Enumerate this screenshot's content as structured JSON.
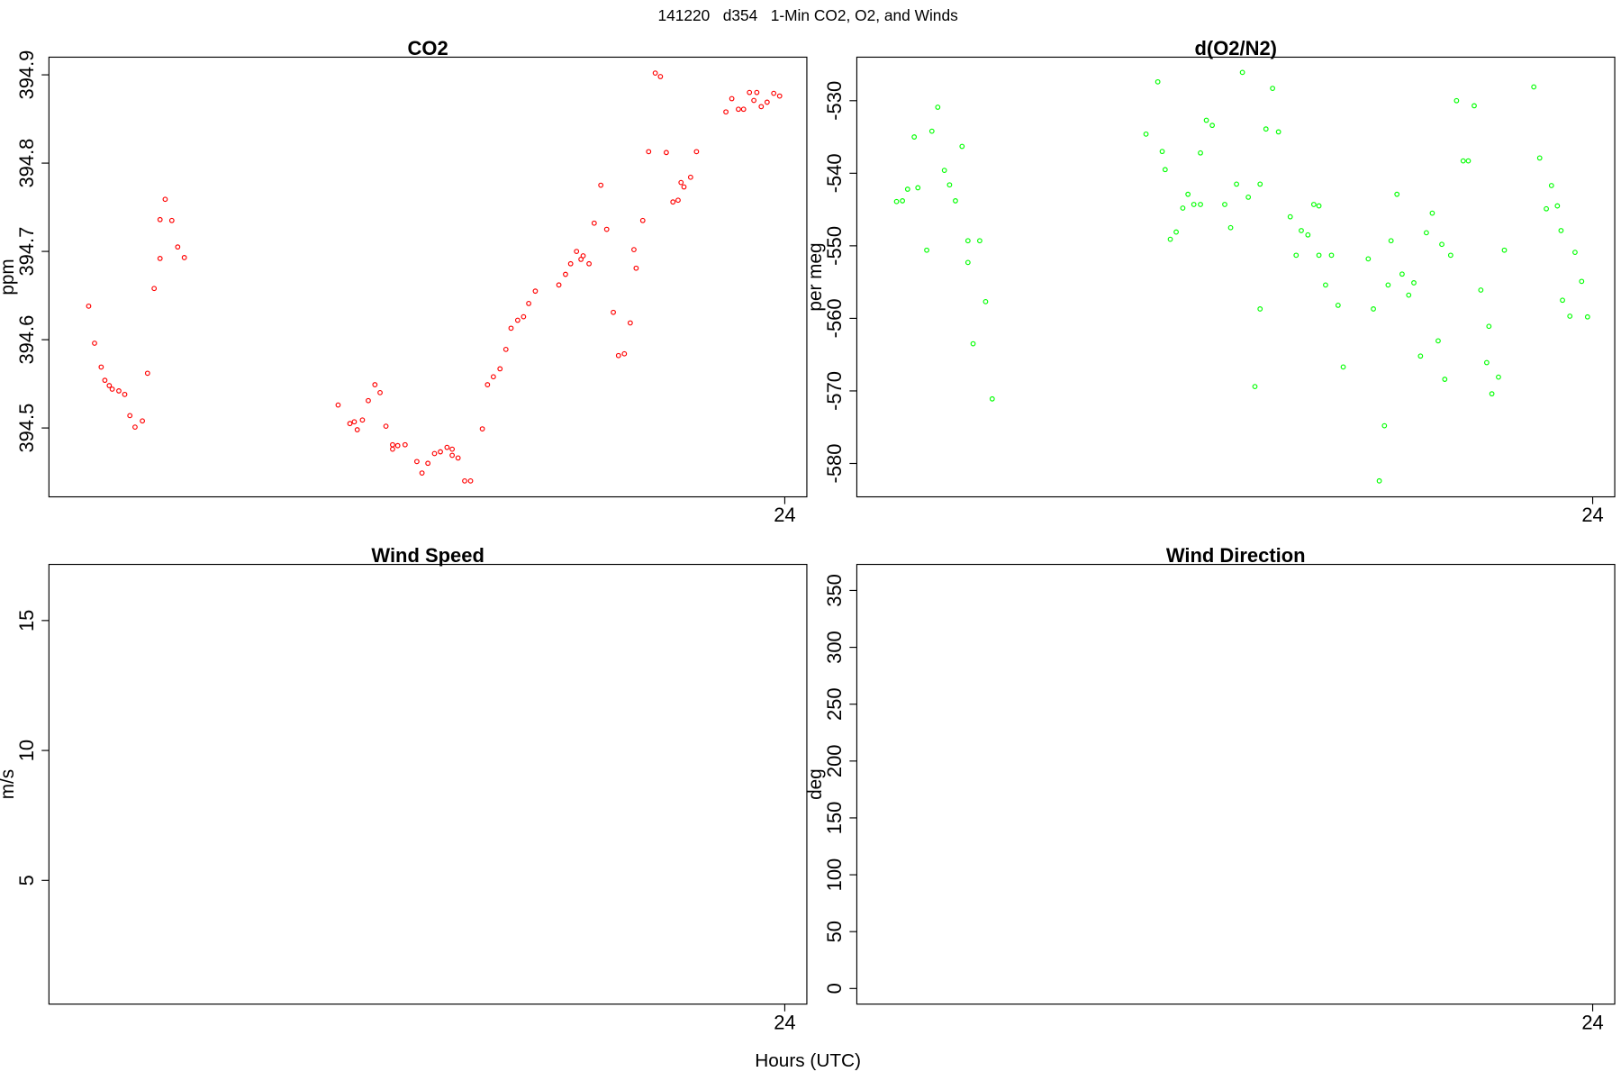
{
  "title": "141220   d354   1-Min CO2, O2, and Winds",
  "xlabel": "Hours (UTC)",
  "chart_data": [
    {
      "type": "scatter",
      "title": "CO2",
      "ylabel": "ppm",
      "color": "#ff0000",
      "xlim": [
        23,
        24.03
      ],
      "xticks": [
        24
      ],
      "ylim": [
        394.422,
        394.92
      ],
      "yticks": [
        394.5,
        394.6,
        394.7,
        394.8,
        394.9
      ],
      "x": [
        23.054,
        23.062,
        23.071,
        23.076,
        23.082,
        23.086,
        23.095,
        23.103,
        23.11,
        23.117,
        23.127,
        23.134,
        23.143,
        23.151,
        23.151,
        23.158,
        23.167,
        23.175,
        23.184,
        23.393,
        23.409,
        23.415,
        23.419,
        23.426,
        23.434,
        23.443,
        23.45,
        23.458,
        23.467,
        23.467,
        23.474,
        23.484,
        23.5,
        23.507,
        23.515,
        23.524,
        23.532,
        23.541,
        23.548,
        23.548,
        23.556,
        23.565,
        23.573,
        23.589,
        23.596,
        23.604,
        23.613,
        23.621,
        23.628,
        23.637,
        23.645,
        23.652,
        23.661,
        23.693,
        23.702,
        23.709,
        23.717,
        23.723,
        23.726,
        23.734,
        23.741,
        23.75,
        23.758,
        23.767,
        23.774,
        23.782,
        23.79,
        23.795,
        23.798,
        23.807,
        23.815,
        23.824,
        23.831,
        23.839,
        23.848,
        23.855,
        23.859,
        23.863,
        23.872,
        23.88,
        23.92,
        23.928,
        23.937,
        23.944,
        23.952,
        23.958,
        23.962,
        23.968,
        23.976,
        23.985,
        23.993
      ],
      "values": [
        394.638,
        394.596,
        394.569,
        394.554,
        394.548,
        394.544,
        394.542,
        394.538,
        394.514,
        394.501,
        394.508,
        394.562,
        394.658,
        394.736,
        394.692,
        394.759,
        394.735,
        394.705,
        394.693,
        394.526,
        394.505,
        394.507,
        394.498,
        394.509,
        394.531,
        394.549,
        394.54,
        394.502,
        394.481,
        394.476,
        394.48,
        394.481,
        394.462,
        394.449,
        394.46,
        394.471,
        394.473,
        394.478,
        394.476,
        394.469,
        394.466,
        394.44,
        394.44,
        394.499,
        394.549,
        394.558,
        394.567,
        394.589,
        394.613,
        394.622,
        394.626,
        394.641,
        394.655,
        394.662,
        394.674,
        394.686,
        394.7,
        394.691,
        394.695,
        394.686,
        394.732,
        394.775,
        394.725,
        394.631,
        394.582,
        394.584,
        394.619,
        394.702,
        394.681,
        394.735,
        394.813,
        394.902,
        394.898,
        394.812,
        394.756,
        394.758,
        394.778,
        394.773,
        394.784,
        394.813,
        394.858,
        394.873,
        394.861,
        394.861,
        394.88,
        394.871,
        394.88,
        394.864,
        394.869,
        394.879,
        394.876
      ]
    },
    {
      "type": "scatter",
      "title": "d(O2/N2)",
      "ylabel": "per meg",
      "color": "#00ff00",
      "xlim": [
        23,
        24.03
      ],
      "xticks": [
        24
      ],
      "ylim": [
        -584.6,
        -524.0
      ],
      "yticks": [
        -580,
        -570,
        -560,
        -550,
        -540,
        -530
      ],
      "x": [
        23.054,
        23.062,
        23.069,
        23.078,
        23.083,
        23.095,
        23.102,
        23.11,
        23.119,
        23.126,
        23.134,
        23.143,
        23.151,
        23.151,
        23.158,
        23.167,
        23.175,
        23.184,
        23.393,
        23.409,
        23.415,
        23.419,
        23.426,
        23.434,
        23.443,
        23.45,
        23.458,
        23.467,
        23.467,
        23.475,
        23.483,
        23.5,
        23.508,
        23.516,
        23.524,
        23.532,
        23.541,
        23.548,
        23.548,
        23.556,
        23.565,
        23.573,
        23.589,
        23.597,
        23.604,
        23.613,
        23.621,
        23.628,
        23.628,
        23.637,
        23.645,
        23.654,
        23.661,
        23.695,
        23.702,
        23.71,
        23.717,
        23.722,
        23.726,
        23.734,
        23.741,
        23.75,
        23.757,
        23.766,
        23.774,
        23.782,
        23.79,
        23.795,
        23.799,
        23.807,
        23.815,
        23.824,
        23.831,
        23.839,
        23.848,
        23.856,
        23.859,
        23.863,
        23.872,
        23.88,
        23.92,
        23.928,
        23.937,
        23.944,
        23.952,
        23.957,
        23.959,
        23.969,
        23.976,
        23.985,
        23.993
      ],
      "values": [
        -543.9,
        -543.8,
        -542.2,
        -535.0,
        -542.0,
        -550.6,
        -534.2,
        -530.9,
        -539.6,
        -541.6,
        -543.8,
        -536.3,
        -552.3,
        -549.3,
        -563.5,
        -549.3,
        -557.7,
        -571.1,
        -534.6,
        -527.4,
        -537.0,
        -539.5,
        -549.1,
        -548.1,
        -544.8,
        -542.9,
        -544.3,
        -537.2,
        -544.3,
        -532.7,
        -533.4,
        -544.3,
        -547.5,
        -541.5,
        -526.1,
        -543.3,
        -569.4,
        -541.5,
        -558.7,
        -533.9,
        -528.3,
        -534.3,
        -546.0,
        -551.3,
        -547.9,
        -548.5,
        -544.3,
        -544.5,
        -551.3,
        -555.4,
        -551.3,
        -558.2,
        -566.7,
        -551.8,
        -558.7,
        -582.4,
        -574.8,
        -555.4,
        -549.3,
        -542.9,
        -553.9,
        -556.8,
        -555.1,
        -565.2,
        -548.2,
        -545.5,
        -563.1,
        -549.8,
        -568.4,
        -551.3,
        -530.0,
        -538.3,
        -538.3,
        -530.7,
        -556.1,
        -566.1,
        -561.1,
        -570.4,
        -568.1,
        -550.6,
        -528.1,
        -537.9,
        -544.9,
        -541.7,
        -544.5,
        -547.9,
        -557.5,
        -559.7,
        -550.9,
        -554.9,
        -559.8
      ]
    },
    {
      "type": "scatter",
      "title": "Wind Speed",
      "ylabel": "m/s",
      "xlim": [
        23,
        24.03
      ],
      "xticks": [
        24
      ],
      "ylim": [
        0.24,
        17.16
      ],
      "yticks": [
        5,
        10,
        15
      ],
      "x": [],
      "values": []
    },
    {
      "type": "scatter",
      "title": "Wind Direction",
      "ylabel": "deg",
      "xlim": [
        23,
        24.03
      ],
      "xticks": [
        24
      ],
      "ylim": [
        -13.7,
        372.9
      ],
      "yticks": [
        0,
        50,
        100,
        150,
        200,
        250,
        300,
        350
      ],
      "x": [],
      "values": []
    }
  ]
}
